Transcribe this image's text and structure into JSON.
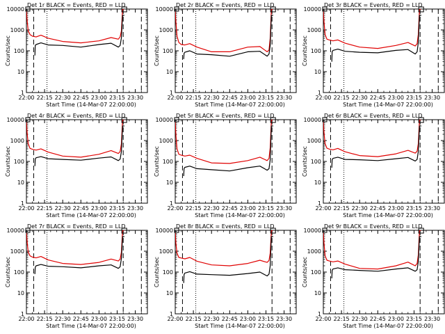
{
  "figure": {
    "background": "#ffffff",
    "series_colors": {
      "events": "#000000",
      "lld": "#e00000"
    }
  },
  "chart_data": [
    {
      "type": "line",
      "title": "Det 1r BLACK = Events, RED = LLD",
      "xlabel": "Start Time (14-Mar-07 22:00:00)",
      "ylabel": "Counts/sec",
      "x_ticks": [
        "22:00",
        "22:15",
        "22:30",
        "22:45",
        "23:00",
        "23:15",
        "23:30"
      ],
      "y_ticks": [
        "1",
        "10",
        "100",
        "1000",
        "10000"
      ],
      "ylim": [
        1,
        10000
      ],
      "yscale": "log",
      "xlim_minutes": [
        0,
        100
      ],
      "dashed_lines_minutes": [
        6,
        80,
        95
      ],
      "dotted_lines_minutes": [
        17
      ],
      "series": [
        {
          "name": "LLD",
          "color": "#e00000",
          "x": [
            0,
            0.7,
            1.5,
            3,
            5,
            8,
            12,
            18,
            30,
            45,
            60,
            70,
            76,
            77.5,
            78.5,
            79.5,
            81
          ],
          "y": [
            8000,
            2500,
            900,
            600,
            500,
            460,
            560,
            400,
            280,
            240,
            300,
            430,
            360,
            470,
            900,
            12000,
            12000
          ]
        },
        {
          "name": "Events",
          "color": "#000000",
          "x": [
            7,
            7.3,
            8,
            12,
            18,
            30,
            45,
            60,
            70,
            76,
            77.5,
            78.5,
            79.5,
            81
          ],
          "y": [
            60,
            180,
            200,
            240,
            190,
            180,
            150,
            200,
            230,
            150,
            180,
            420,
            5000,
            5000
          ]
        }
      ]
    },
    {
      "type": "line",
      "title": "Det 2r BLACK = Events, RED = LLD",
      "xlabel": "Start Time (14-Mar-07 22:00:00)",
      "ylabel": "Counts/sec",
      "x_ticks": [
        "22:00",
        "22:15",
        "22:30",
        "22:45",
        "23:00",
        "23:15",
        "23:30"
      ],
      "y_ticks": [
        "1",
        "10",
        "100",
        "1000",
        "10000"
      ],
      "ylim": [
        1,
        10000
      ],
      "yscale": "log",
      "xlim_minutes": [
        0,
        100
      ],
      "dashed_lines_minutes": [
        6,
        80,
        95
      ],
      "dotted_lines_minutes": [
        17
      ],
      "series": [
        {
          "name": "LLD",
          "color": "#e00000",
          "x": [
            0,
            0.7,
            1.5,
            3,
            5,
            8,
            12,
            18,
            30,
            45,
            60,
            70,
            76,
            77.5,
            78.5,
            79.5,
            81
          ],
          "y": [
            8000,
            2000,
            500,
            250,
            200,
            190,
            220,
            150,
            90,
            90,
            150,
            160,
            90,
            110,
            400,
            12000,
            12000
          ]
        },
        {
          "name": "Events",
          "color": "#000000",
          "x": [
            7,
            7.3,
            8,
            12,
            18,
            30,
            45,
            60,
            70,
            76,
            77.5,
            78.5,
            79.5,
            81
          ],
          "y": [
            40,
            75,
            85,
            100,
            70,
            65,
            55,
            90,
            95,
            55,
            70,
            180,
            5000,
            5000
          ]
        }
      ]
    },
    {
      "type": "line",
      "title": "Det 3r BLACK = Events, RED = LLD",
      "xlabel": "Start Time (14-Mar-07 22:00:00)",
      "ylabel": "Counts/sec",
      "x_ticks": [
        "22:00",
        "22:15",
        "22:30",
        "22:45",
        "23:00",
        "23:15",
        "23:30"
      ],
      "y_ticks": [
        "1",
        "10",
        "100",
        "1000",
        "10000"
      ],
      "ylim": [
        1,
        10000
      ],
      "yscale": "log",
      "xlim_minutes": [
        0,
        100
      ],
      "dashed_lines_minutes": [
        6,
        80,
        95
      ],
      "dotted_lines_minutes": [
        17
      ],
      "series": [
        {
          "name": "LLD",
          "color": "#e00000",
          "x": [
            0,
            0.7,
            1.5,
            3,
            5,
            8,
            12,
            18,
            30,
            45,
            60,
            70,
            76,
            77.5,
            78.5,
            79.5,
            81
          ],
          "y": [
            8000,
            2000,
            600,
            360,
            330,
            300,
            330,
            230,
            150,
            130,
            180,
            250,
            170,
            220,
            600,
            12000,
            12000
          ]
        },
        {
          "name": "Events",
          "color": "#000000",
          "x": [
            7,
            7.3,
            8,
            12,
            18,
            30,
            45,
            60,
            70,
            76,
            77.5,
            78.5,
            79.5,
            81
          ],
          "y": [
            30,
            90,
            105,
            120,
            95,
            85,
            80,
            105,
            115,
            70,
            90,
            250,
            5000,
            5000
          ]
        }
      ]
    },
    {
      "type": "line",
      "title": "Det 4r BLACK = Events, RED = LLD",
      "xlabel": "Start Time (14-Mar-07 22:00:00)",
      "ylabel": "Counts/sec",
      "x_ticks": [
        "22:00",
        "22:15",
        "22:30",
        "22:45",
        "23:00",
        "23:15",
        "23:30"
      ],
      "y_ticks": [
        "1",
        "10",
        "100",
        "1000",
        "10000"
      ],
      "ylim": [
        1,
        10000
      ],
      "yscale": "log",
      "xlim_minutes": [
        0,
        100
      ],
      "dashed_lines_minutes": [
        6,
        80,
        95
      ],
      "dotted_lines_minutes": [
        17
      ],
      "series": [
        {
          "name": "LLD",
          "color": "#e00000",
          "x": [
            0,
            0.7,
            1.5,
            3,
            5,
            8,
            12,
            18,
            30,
            45,
            60,
            70,
            76,
            77.5,
            78.5,
            79.5,
            81
          ],
          "y": [
            8000,
            2000,
            700,
            420,
            380,
            350,
            400,
            280,
            180,
            160,
            220,
            330,
            240,
            300,
            700,
            12000,
            12000
          ]
        },
        {
          "name": "Events",
          "color": "#000000",
          "x": [
            7,
            7.3,
            8,
            12,
            18,
            30,
            45,
            60,
            70,
            76,
            77.5,
            78.5,
            79.5,
            81
          ],
          "y": [
            60,
            130,
            150,
            170,
            135,
            125,
            115,
            145,
            165,
            110,
            130,
            300,
            5000,
            5000
          ]
        }
      ]
    },
    {
      "type": "line",
      "title": "Det 5r BLACK = Events, RED = LLD",
      "xlabel": "Start Time (14-Mar-07 22:00:00)",
      "ylabel": "Counts/sec",
      "x_ticks": [
        "22:00",
        "22:15",
        "22:30",
        "22:45",
        "23:00",
        "23:15",
        "23:30"
      ],
      "y_ticks": [
        "1",
        "10",
        "100",
        "1000",
        "10000"
      ],
      "ylim": [
        1,
        10000
      ],
      "yscale": "log",
      "xlim_minutes": [
        0,
        100
      ],
      "dashed_lines_minutes": [
        6,
        80,
        95
      ],
      "dotted_lines_minutes": [
        17
      ],
      "series": [
        {
          "name": "LLD",
          "color": "#e00000",
          "x": [
            0,
            0.7,
            1.5,
            3,
            5,
            8,
            12,
            18,
            30,
            45,
            60,
            70,
            76,
            77.5,
            78.5,
            79.5,
            81
          ],
          "y": [
            8000,
            1500,
            400,
            220,
            200,
            180,
            200,
            140,
            85,
            80,
            110,
            160,
            110,
            140,
            450,
            12000,
            12000
          ]
        },
        {
          "name": "Events",
          "color": "#000000",
          "x": [
            7,
            7.3,
            8,
            12,
            18,
            30,
            45,
            60,
            70,
            76,
            77.5,
            78.5,
            79.5,
            81
          ],
          "y": [
            20,
            45,
            52,
            60,
            45,
            40,
            35,
            50,
            60,
            38,
            45,
            120,
            5000,
            5000
          ]
        }
      ]
    },
    {
      "type": "line",
      "title": "Det 6r BLACK = Events, RED = LLD",
      "xlabel": "Start Time (14-Mar-07 22:00:00)",
      "ylabel": "Counts/sec",
      "x_ticks": [
        "22:00",
        "22:15",
        "22:30",
        "22:45",
        "23:00",
        "23:15",
        "23:30"
      ],
      "y_ticks": [
        "1",
        "10",
        "100",
        "1000",
        "10000"
      ],
      "ylim": [
        1,
        10000
      ],
      "yscale": "log",
      "xlim_minutes": [
        0,
        100
      ],
      "dashed_lines_minutes": [
        6,
        80,
        95
      ],
      "dotted_lines_minutes": [
        17
      ],
      "series": [
        {
          "name": "LLD",
          "color": "#e00000",
          "x": [
            0,
            0.7,
            1.5,
            3,
            5,
            8,
            12,
            18,
            30,
            45,
            60,
            70,
            76,
            77.5,
            78.5,
            79.5,
            81
          ],
          "y": [
            8000,
            2000,
            700,
            430,
            390,
            360,
            420,
            290,
            190,
            170,
            230,
            340,
            250,
            310,
            700,
            12000,
            12000
          ]
        },
        {
          "name": "Events",
          "color": "#000000",
          "x": [
            7,
            7.3,
            8,
            12,
            18,
            30,
            45,
            60,
            70,
            76,
            77.5,
            78.5,
            79.5,
            81
          ],
          "y": [
            50,
            120,
            140,
            160,
            125,
            120,
            110,
            135,
            155,
            105,
            125,
            300,
            5000,
            5000
          ]
        }
      ]
    },
    {
      "type": "line",
      "title": "Det 7r BLACK = Events, RED = LLD",
      "xlabel": "Start Time (14-Mar-07 22:00:00)",
      "ylabel": "Counts/sec",
      "x_ticks": [
        "22:00",
        "22:15",
        "22:30",
        "22:45",
        "23:00",
        "23:15",
        "23:30"
      ],
      "y_ticks": [
        "1",
        "10",
        "100",
        "1000",
        "10000"
      ],
      "ylim": [
        1,
        10000
      ],
      "yscale": "log",
      "xlim_minutes": [
        0,
        100
      ],
      "dashed_lines_minutes": [
        6,
        80,
        95
      ],
      "dotted_lines_minutes": [
        17
      ],
      "series": [
        {
          "name": "LLD",
          "color": "#e00000",
          "x": [
            0,
            0.7,
            1.5,
            3,
            5,
            8,
            12,
            18,
            30,
            45,
            60,
            70,
            76,
            77.5,
            78.5,
            79.5,
            81
          ],
          "y": [
            8000,
            2500,
            900,
            600,
            520,
            480,
            560,
            380,
            260,
            230,
            290,
            420,
            340,
            420,
            900,
            12000,
            12000
          ]
        },
        {
          "name": "Events",
          "color": "#000000",
          "x": [
            7,
            7.3,
            8,
            12,
            18,
            30,
            45,
            60,
            70,
            76,
            77.5,
            78.5,
            79.5,
            81
          ],
          "y": [
            80,
            170,
            200,
            230,
            190,
            180,
            160,
            200,
            220,
            150,
            180,
            450,
            5000,
            5000
          ]
        }
      ]
    },
    {
      "type": "line",
      "title": "Det 8r BLACK = Events, RED = LLD",
      "xlabel": "Start Time (14-Mar-07 22:00:00)",
      "ylabel": "Counts/sec",
      "x_ticks": [
        "22:00",
        "22:15",
        "22:30",
        "22:45",
        "23:00",
        "23:15",
        "23:30"
      ],
      "y_ticks": [
        "1",
        "10",
        "100",
        "1000",
        "10000"
      ],
      "ylim": [
        1,
        10000
      ],
      "yscale": "log",
      "xlim_minutes": [
        0,
        100
      ],
      "dashed_lines_minutes": [
        6,
        80,
        95
      ],
      "dotted_lines_minutes": [
        17
      ],
      "series": [
        {
          "name": "LLD",
          "color": "#e00000",
          "x": [
            0,
            0.7,
            1.5,
            3,
            5,
            8,
            12,
            18,
            30,
            45,
            60,
            70,
            76,
            77.5,
            78.5,
            79.5,
            81
          ],
          "y": [
            8000,
            2000,
            800,
            500,
            470,
            430,
            500,
            330,
            220,
            200,
            260,
            370,
            290,
            360,
            800,
            12000,
            12000
          ]
        },
        {
          "name": "Events",
          "color": "#000000",
          "x": [
            7,
            7.3,
            8,
            12,
            18,
            30,
            45,
            60,
            70,
            76,
            77.5,
            78.5,
            79.5,
            81
          ],
          "y": [
            30,
            75,
            90,
            105,
            80,
            75,
            70,
            85,
            100,
            65,
            80,
            200,
            5000,
            5000
          ]
        }
      ]
    },
    {
      "type": "line",
      "title": "Det 9r BLACK = Events, RED = LLD",
      "xlabel": "Start Time (14-Mar-07 22:00:00)",
      "ylabel": "Counts/sec",
      "x_ticks": [
        "22:00",
        "22:15",
        "22:30",
        "22:45",
        "23:00",
        "23:15",
        "23:30"
      ],
      "y_ticks": [
        "1",
        "10",
        "100",
        "1000",
        "10000"
      ],
      "ylim": [
        1,
        10000
      ],
      "yscale": "log",
      "xlim_minutes": [
        0,
        100
      ],
      "dashed_lines_minutes": [
        6,
        80,
        95
      ],
      "dotted_lines_minutes": [
        17
      ],
      "series": [
        {
          "name": "LLD",
          "color": "#e00000",
          "x": [
            0,
            0.7,
            1.5,
            3,
            5,
            8,
            12,
            18,
            30,
            45,
            60,
            70,
            76,
            77.5,
            78.5,
            79.5,
            81
          ],
          "y": [
            8000,
            2000,
            600,
            370,
            340,
            310,
            340,
            240,
            150,
            140,
            200,
            300,
            200,
            260,
            650,
            12000,
            12000
          ]
        },
        {
          "name": "Events",
          "color": "#000000",
          "x": [
            7,
            7.3,
            8,
            12,
            18,
            30,
            45,
            60,
            70,
            76,
            77.5,
            78.5,
            79.5,
            81
          ],
          "y": [
            50,
            120,
            140,
            160,
            130,
            120,
            110,
            140,
            160,
            110,
            130,
            320,
            5000,
            5000
          ]
        }
      ]
    }
  ]
}
